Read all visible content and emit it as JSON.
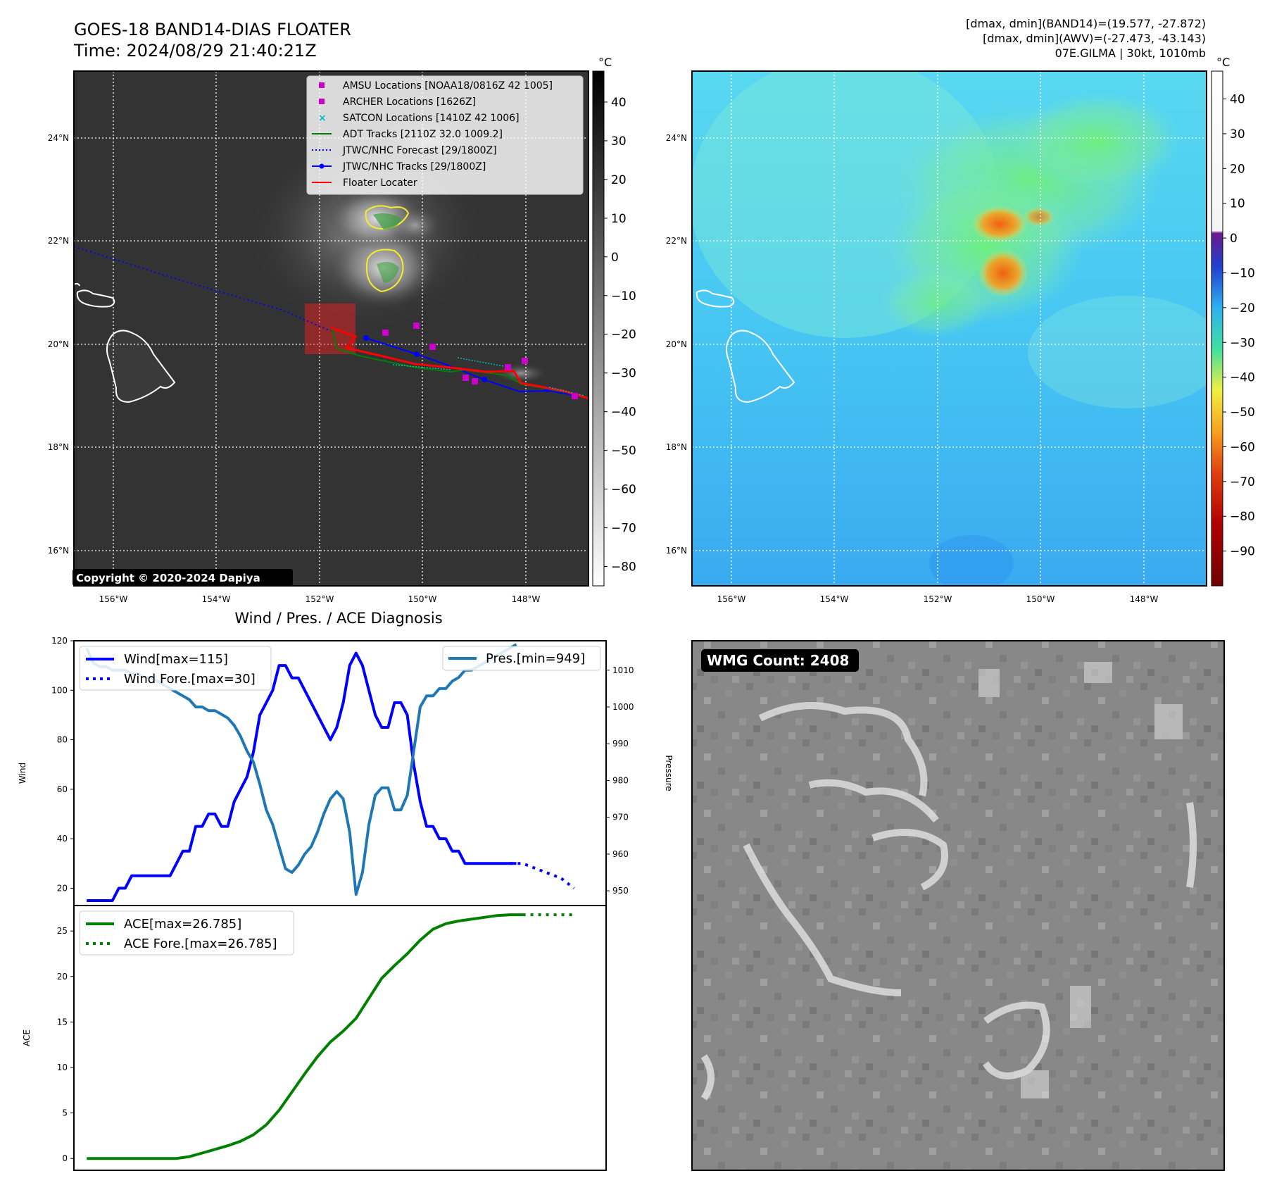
{
  "header": {
    "title": "GOES-18 BAND14-DIAS FLOATER",
    "time": "Time: 2024/08/29 21:40:21Z",
    "info_line1": "[dmax, dmin](BAND14)=(19.577, -27.872)",
    "info_line2": "[dmax, dmin](AWV)=(-27.473, -43.143)",
    "info_line3": "07E.GILMA | 30kt, 1010mb"
  },
  "maps": {
    "lat_labels": [
      "24°N",
      "22°N",
      "20°N",
      "18°N",
      "16°N"
    ],
    "lon_labels": [
      "156°W",
      "154°W",
      "152°W",
      "150°W",
      "148°W"
    ],
    "copyright": "Copyright © 2020-2024 Dapiya"
  },
  "ir_colorbar": {
    "unit": "°C",
    "ticks": [
      "40",
      "30",
      "20",
      "10",
      "0",
      "−10",
      "−20",
      "−30",
      "−40",
      "−50",
      "−60",
      "−70",
      "−80"
    ]
  },
  "awv_colorbar": {
    "unit": "°C",
    "ticks": [
      "40",
      "30",
      "20",
      "10",
      "0",
      "−10",
      "−20",
      "−30",
      "−40",
      "−50",
      "−60",
      "−70",
      "−80",
      "−90"
    ]
  },
  "legend": {
    "items": [
      {
        "label": "AMSU Locations [NOAA18/0816Z 42 1005]",
        "color": "#cc00cc",
        "marker": "square"
      },
      {
        "label": "ARCHER Locations [1626Z]",
        "color": "#cc00cc",
        "marker": "square"
      },
      {
        "label": "SATCON Locations [1410Z 42 1006]",
        "color": "#00c0c0",
        "marker": "x"
      },
      {
        "label": "ADT Tracks [2110Z 32.0 1009.2]",
        "color": "#008000",
        "marker": "line"
      },
      {
        "label": "JTWC/NHC Forecast [29/1800Z]",
        "color": "#0000ff",
        "marker": "dotted"
      },
      {
        "label": "JTWC/NHC Tracks [29/1800Z]",
        "color": "#0000ff",
        "marker": "line-dot"
      },
      {
        "label": "Floater Locater",
        "color": "#ff0000",
        "marker": "line"
      }
    ]
  },
  "diagnosis": {
    "title": "Wind / Pres. / ACE Diagnosis",
    "wind_ylabel": "Wind",
    "pres_ylabel": "Pressure",
    "ace_ylabel": "ACE",
    "wind_legend": [
      "Wind[max=115]",
      "Wind Fore.[max=30]"
    ],
    "pres_legend": "Pres.[min=949]",
    "ace_legend": [
      "ACE[max=26.785]",
      "ACE Fore.[max=26.785]"
    ],
    "wind_ticks": [
      "120",
      "100",
      "80",
      "60",
      "40",
      "20"
    ],
    "pres_ticks": [
      "1010",
      "1000",
      "990",
      "980",
      "970",
      "960",
      "950"
    ],
    "ace_ticks": [
      "25",
      "20",
      "15",
      "10",
      "5",
      "0"
    ]
  },
  "wmg": {
    "label": "WMG Count: 2408"
  },
  "chart_data": [
    {
      "type": "line",
      "title": "Wind / Pres. / ACE Diagnosis",
      "ylabel": "Wind",
      "ylim": [
        13,
        120
      ],
      "x": [
        0,
        1,
        2,
        3,
        4,
        5,
        6,
        7,
        8,
        9,
        10,
        11,
        12,
        13,
        14,
        15,
        16,
        17,
        18,
        19,
        20,
        21,
        22,
        23,
        24,
        25,
        26,
        27,
        28,
        29,
        30,
        31,
        32,
        33,
        34,
        35,
        36,
        37,
        38,
        39,
        40,
        41,
        42,
        43,
        44,
        45,
        46,
        47,
        48,
        49,
        50,
        51,
        52,
        53,
        54,
        55,
        56,
        57,
        58,
        59,
        60,
        61,
        62,
        63,
        64,
        65,
        66,
        67,
        68,
        69,
        70,
        71,
        72,
        73,
        74,
        75,
        76
      ],
      "series": [
        {
          "name": "Wind[max=115]",
          "color": "#0000ff",
          "style": "solid",
          "x": [
            0,
            1,
            2,
            3,
            4,
            5,
            6,
            7,
            8,
            9,
            10,
            11,
            12,
            13,
            14,
            15,
            16,
            17,
            18,
            19,
            20,
            21,
            22,
            23,
            24,
            25,
            26,
            27,
            28,
            29,
            30,
            31,
            32,
            33,
            34,
            35,
            36,
            37,
            38,
            39,
            40,
            41,
            42,
            43,
            44,
            45,
            46,
            47,
            48,
            49,
            50,
            51,
            52,
            53,
            54,
            55,
            56,
            57,
            58,
            59,
            60,
            61,
            62,
            63,
            64,
            65,
            66,
            67
          ],
          "values": [
            15,
            15,
            15,
            15,
            15,
            20,
            20,
            25,
            25,
            25,
            25,
            25,
            25,
            25,
            30,
            35,
            35,
            45,
            45,
            50,
            50,
            45,
            45,
            55,
            60,
            65,
            75,
            90,
            95,
            100,
            110,
            110,
            105,
            105,
            100,
            95,
            90,
            85,
            80,
            85,
            95,
            110,
            115,
            110,
            100,
            90,
            85,
            85,
            95,
            95,
            90,
            70,
            55,
            45,
            45,
            40,
            40,
            35,
            35,
            30,
            30,
            30,
            30,
            30,
            30,
            30,
            30,
            30
          ]
        },
        {
          "name": "Wind Fore.[max=30]",
          "color": "#0000ff",
          "style": "dotted",
          "x": [
            66,
            67,
            68,
            69,
            70,
            71,
            72,
            73,
            74,
            75,
            76
          ],
          "values": [
            30,
            30,
            30,
            29,
            28,
            27,
            26,
            25,
            24,
            22,
            20
          ]
        }
      ]
    },
    {
      "type": "line",
      "ylabel": "Pressure",
      "ylim": [
        946,
        1018
      ],
      "series": [
        {
          "name": "Pres.[min=949]",
          "color": "#1f77b4",
          "style": "solid",
          "x": [
            0,
            1,
            2,
            3,
            4,
            5,
            6,
            7,
            8,
            9,
            10,
            11,
            12,
            13,
            14,
            15,
            16,
            17,
            18,
            19,
            20,
            21,
            22,
            23,
            24,
            25,
            26,
            27,
            28,
            29,
            30,
            31,
            32,
            33,
            34,
            35,
            36,
            37,
            38,
            39,
            40,
            41,
            42,
            43,
            44,
            45,
            46,
            47,
            48,
            49,
            50,
            51,
            52,
            53,
            54,
            55,
            56,
            57,
            58,
            59,
            60,
            61,
            62,
            63,
            64,
            65,
            66,
            67
          ],
          "values": [
            1016,
            1012,
            1011,
            1011,
            1010,
            1010,
            1010,
            1009,
            1009,
            1008,
            1008,
            1007,
            1006,
            1005,
            1004,
            1003,
            1002,
            1000,
            1000,
            999,
            999,
            998,
            997,
            995,
            992,
            988,
            985,
            979,
            972,
            968,
            962,
            956,
            955,
            957,
            960,
            962,
            966,
            971,
            975,
            977,
            975,
            966,
            949,
            955,
            968,
            976,
            978,
            978,
            972,
            972,
            976,
            988,
            1000,
            1003,
            1003,
            1005,
            1005,
            1007,
            1008,
            1010,
            1010,
            1011,
            1012,
            1013,
            1014,
            1015,
            1016,
            1017
          ]
        }
      ]
    },
    {
      "type": "line",
      "ylabel": "ACE",
      "ylim": [
        -1.3,
        27.8
      ],
      "series": [
        {
          "name": "ACE[max=26.785]",
          "color": "#008000",
          "style": "solid",
          "x": [
            0,
            2,
            4,
            6,
            8,
            10,
            12,
            14,
            16,
            18,
            20,
            22,
            24,
            26,
            28,
            30,
            32,
            34,
            36,
            38,
            40,
            42,
            44,
            46,
            48,
            50,
            52,
            54,
            56,
            58,
            60,
            62,
            64,
            66,
            68
          ],
          "values": [
            0,
            0,
            0,
            0,
            0,
            0,
            0,
            0,
            0.2,
            0.6,
            1.0,
            1.4,
            1.9,
            2.6,
            3.7,
            5.3,
            7.3,
            9.3,
            11.2,
            12.8,
            14.0,
            15.4,
            17.6,
            19.8,
            21.2,
            22.5,
            24.0,
            25.2,
            25.8,
            26.1,
            26.3,
            26.5,
            26.7,
            26.785,
            26.785
          ]
        },
        {
          "name": "ACE Fore.[max=26.785]",
          "color": "#008000",
          "style": "dotted",
          "x": [
            68,
            70,
            72,
            74,
            76
          ],
          "values": [
            26.785,
            26.785,
            26.785,
            26.785,
            26.785
          ]
        }
      ]
    }
  ]
}
